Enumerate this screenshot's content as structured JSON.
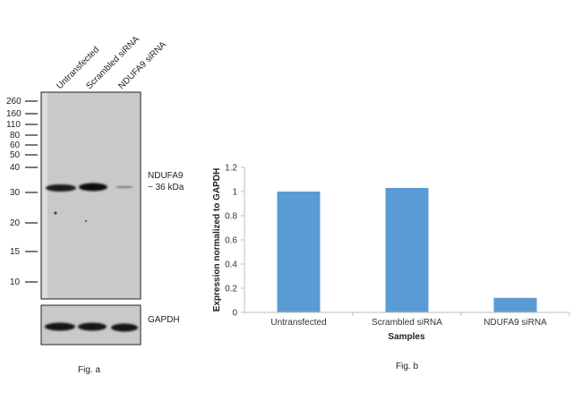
{
  "fig_a": {
    "lanes": [
      "Untransfected",
      "Scrambled siRNA",
      "NDUFA9 siRNA"
    ],
    "markers": [
      "260",
      "160",
      "110",
      "80",
      "60",
      "50",
      "40",
      "30",
      "20",
      "15",
      "10"
    ],
    "band_label_line1": "NDUFA9",
    "band_label_line2": "~ 36 kDa",
    "loading_label": "GAPDH",
    "caption": "Fig. a"
  },
  "fig_b": {
    "caption": "Fig. b"
  },
  "chart_data": {
    "type": "bar",
    "categories": [
      "Untransfected",
      "Scrambled siRNA",
      "NDUFA9 siRNA"
    ],
    "values": [
      1.0,
      1.03,
      0.12
    ],
    "xlabel": "Samples",
    "ylabel": "Expression  normalized to GAPDH",
    "ylim": [
      0,
      1.2
    ],
    "yticks": [
      "0",
      "0.2",
      "0.4",
      "0.6",
      "0.8",
      "1",
      "1.2"
    ],
    "grid": false,
    "bar_color": "#5b9bd5"
  }
}
